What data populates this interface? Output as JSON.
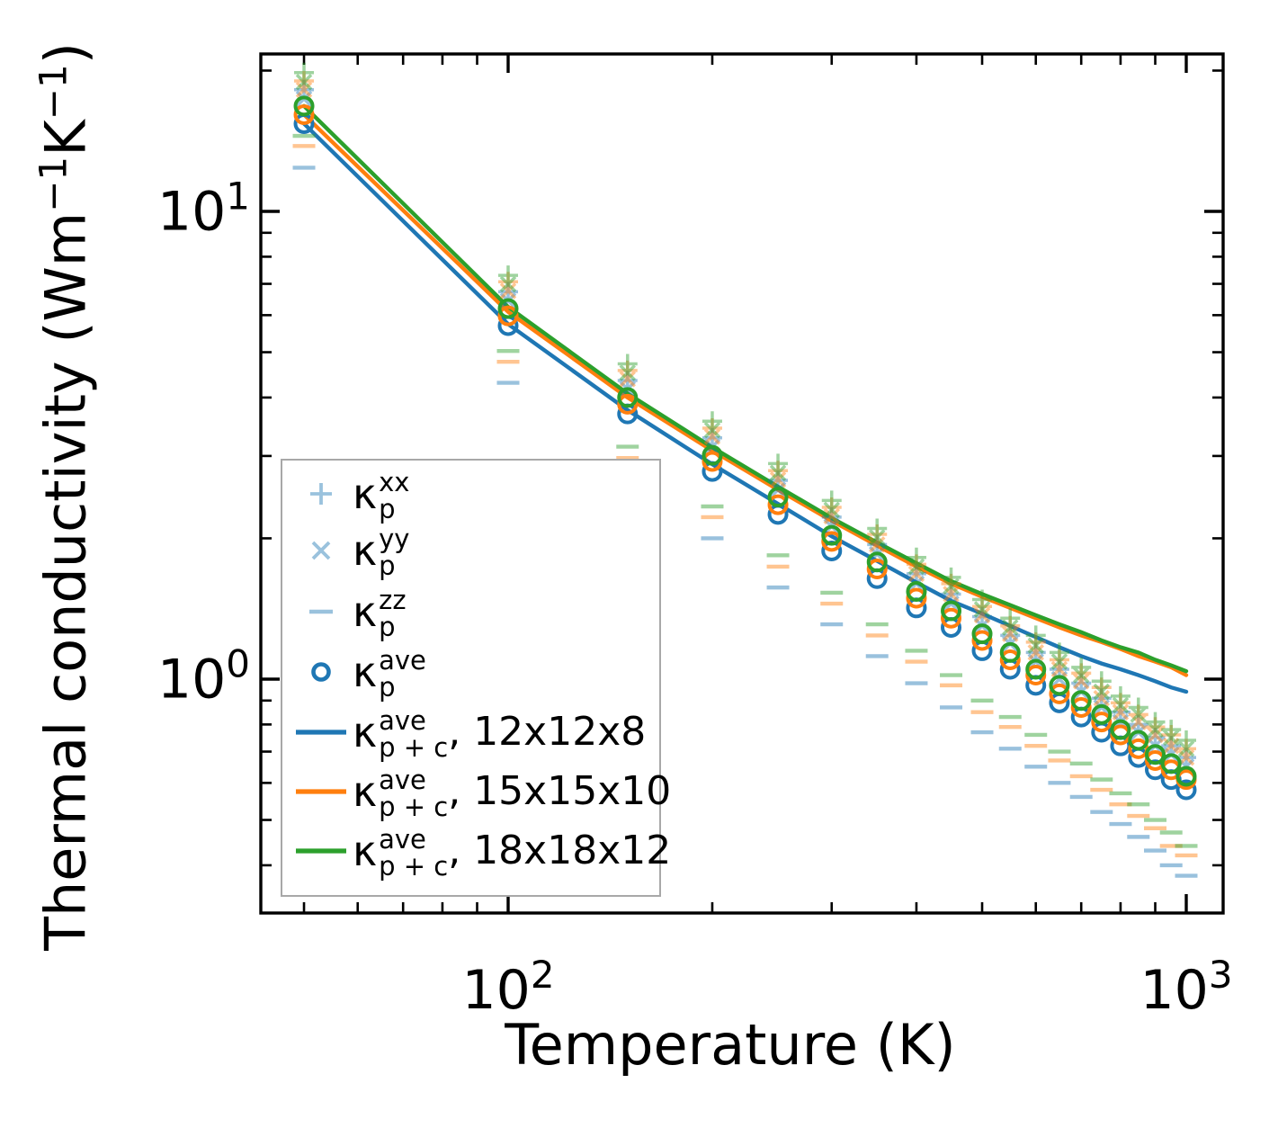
{
  "colors": {
    "blue": "#1f77b4",
    "orange": "#ff7f0e",
    "green": "#2ca02c",
    "light_marker_opacity": 0.45,
    "axis": "#000000",
    "legend_border": "#a8a8a8",
    "background": "#ffffff"
  },
  "axes": {
    "xlabel": "Temperature (K)",
    "ylabel": {
      "pre": "Thermal conductivity (Wm",
      "sup1": "−1",
      "mid": "K",
      "sup2": "−1",
      "post": ")"
    },
    "xticks": [
      {
        "base": "10",
        "exp": "2",
        "value": 100
      },
      {
        "base": "10",
        "exp": "3",
        "value": 1000
      }
    ],
    "yticks": [
      {
        "base": "10",
        "exp": "1",
        "value": 10
      },
      {
        "base": "10",
        "exp": "0",
        "value": 1
      }
    ]
  },
  "legend": {
    "entries": [
      {
        "marker": "plus",
        "color_key": "blue",
        "light": true,
        "base": "κ",
        "sup": "xx",
        "sub": "p",
        "rest": ""
      },
      {
        "marker": "cross",
        "color_key": "blue",
        "light": true,
        "base": "κ",
        "sup": "yy",
        "sub": "p",
        "rest": ""
      },
      {
        "marker": "dash",
        "color_key": "blue",
        "light": true,
        "base": "κ",
        "sup": "zz",
        "sub": "p",
        "rest": ""
      },
      {
        "marker": "circle",
        "color_key": "blue",
        "light": false,
        "base": "κ",
        "sup": "ave",
        "sub": "p",
        "rest": ""
      },
      {
        "marker": "line",
        "color_key": "blue",
        "light": false,
        "base": "κ",
        "sup": "ave",
        "sub": "p + c",
        "rest": ", 12x12x8"
      },
      {
        "marker": "line",
        "color_key": "orange",
        "light": false,
        "base": "κ",
        "sup": "ave",
        "sub": "p + c",
        "rest": ", 15x15x10"
      },
      {
        "marker": "line",
        "color_key": "green",
        "light": false,
        "base": "κ",
        "sup": "ave",
        "sub": "p + c",
        "rest": ", 18x18x12"
      }
    ]
  },
  "chart_data": {
    "type": "line+scatter",
    "xscale": "log",
    "yscale": "log",
    "title": "",
    "xlabel": "Temperature (K)",
    "ylabel": "Thermal conductivity (Wm−1K−1)",
    "xlim": [
      43,
      1133
    ],
    "ylim": [
      0.316,
      21.7
    ],
    "grid": false,
    "legend_position": "lower left",
    "temperatures": [
      50,
      100,
      150,
      200,
      250,
      300,
      350,
      400,
      450,
      500,
      550,
      600,
      650,
      700,
      750,
      800,
      850,
      900,
      950,
      1000
    ],
    "meshes": [
      {
        "name": "12x12x8",
        "color_key": "blue",
        "kappa_p_xx": [
          18.2,
          6.73,
          4.35,
          3.28,
          2.66,
          2.22,
          1.94,
          1.68,
          1.52,
          1.36,
          1.24,
          1.14,
          1.05,
          0.98,
          0.91,
          0.85,
          0.8,
          0.75,
          0.72,
          0.68
        ],
        "kappa_p_yy": [
          17.4,
          6.44,
          4.17,
          3.14,
          2.54,
          2.12,
          1.85,
          1.6,
          1.45,
          1.3,
          1.19,
          1.09,
          1.0,
          0.94,
          0.87,
          0.81,
          0.77,
          0.72,
          0.69,
          0.65
        ],
        "kappa_p_zz": [
          12.4,
          4.3,
          2.68,
          2.0,
          1.57,
          1.31,
          1.12,
          0.98,
          0.87,
          0.77,
          0.71,
          0.65,
          0.6,
          0.56,
          0.52,
          0.49,
          0.46,
          0.43,
          0.4,
          0.38
        ],
        "kappa_p_ave": [
          15.4,
          5.7,
          3.69,
          2.78,
          2.25,
          1.88,
          1.64,
          1.42,
          1.29,
          1.15,
          1.05,
          0.97,
          0.89,
          0.83,
          0.77,
          0.72,
          0.68,
          0.64,
          0.61,
          0.58
        ],
        "kappa_p_plus_c_ave": [
          15.4,
          5.74,
          3.76,
          2.88,
          2.37,
          2.02,
          1.79,
          1.61,
          1.47,
          1.38,
          1.3,
          1.23,
          1.17,
          1.12,
          1.08,
          1.05,
          1.02,
          0.99,
          0.96,
          0.94
        ]
      },
      {
        "name": "15x15x10",
        "color_key": "orange",
        "kappa_p_xx": [
          19.0,
          7.07,
          4.57,
          3.44,
          2.79,
          2.33,
          2.04,
          1.76,
          1.6,
          1.43,
          1.3,
          1.2,
          1.1,
          1.03,
          0.96,
          0.89,
          0.84,
          0.79,
          0.76,
          0.71
        ],
        "kappa_p_yy": [
          18.2,
          6.76,
          4.38,
          3.3,
          2.67,
          2.23,
          1.94,
          1.68,
          1.52,
          1.37,
          1.25,
          1.14,
          1.05,
          0.99,
          0.91,
          0.85,
          0.81,
          0.76,
          0.72,
          0.68
        ],
        "kappa_p_zz": [
          13.8,
          4.77,
          2.97,
          2.22,
          1.74,
          1.45,
          1.24,
          1.09,
          0.97,
          0.85,
          0.79,
          0.72,
          0.67,
          0.62,
          0.58,
          0.54,
          0.51,
          0.48,
          0.44,
          0.42
        ],
        "kappa_p_ave": [
          16.1,
          5.98,
          3.87,
          2.92,
          2.36,
          1.97,
          1.72,
          1.49,
          1.35,
          1.21,
          1.1,
          1.02,
          0.93,
          0.87,
          0.81,
          0.76,
          0.71,
          0.67,
          0.64,
          0.61
        ],
        "kappa_p_plus_c_ave": [
          16.1,
          6.1,
          4.0,
          3.08,
          2.54,
          2.18,
          1.93,
          1.74,
          1.6,
          1.5,
          1.42,
          1.35,
          1.29,
          1.24,
          1.2,
          1.16,
          1.12,
          1.09,
          1.06,
          1.02
        ]
      },
      {
        "name": "18x18x12",
        "color_key": "green",
        "kappa_p_xx": [
          19.8,
          7.3,
          4.72,
          3.56,
          2.89,
          2.41,
          2.1,
          1.82,
          1.65,
          1.48,
          1.35,
          1.24,
          1.14,
          1.06,
          0.99,
          0.92,
          0.87,
          0.81,
          0.78,
          0.74
        ],
        "kappa_p_yy": [
          18.9,
          6.99,
          4.52,
          3.41,
          2.76,
          2.3,
          2.01,
          1.74,
          1.58,
          1.41,
          1.29,
          1.18,
          1.09,
          1.02,
          0.94,
          0.88,
          0.84,
          0.78,
          0.75,
          0.71
        ],
        "kappa_p_zz": [
          14.5,
          5.03,
          3.14,
          2.34,
          1.84,
          1.53,
          1.31,
          1.15,
          1.02,
          0.9,
          0.83,
          0.76,
          0.7,
          0.66,
          0.61,
          0.57,
          0.54,
          0.5,
          0.47,
          0.44
        ],
        "kappa_p_ave": [
          16.8,
          6.2,
          4.0,
          3.01,
          2.45,
          2.03,
          1.78,
          1.54,
          1.4,
          1.25,
          1.14,
          1.05,
          0.97,
          0.9,
          0.84,
          0.78,
          0.74,
          0.69,
          0.66,
          0.62
        ],
        "kappa_p_plus_c_ave": [
          16.8,
          6.25,
          4.08,
          3.13,
          2.58,
          2.21,
          1.96,
          1.77,
          1.62,
          1.52,
          1.44,
          1.37,
          1.31,
          1.26,
          1.21,
          1.17,
          1.14,
          1.1,
          1.07,
          1.04
        ]
      }
    ]
  }
}
